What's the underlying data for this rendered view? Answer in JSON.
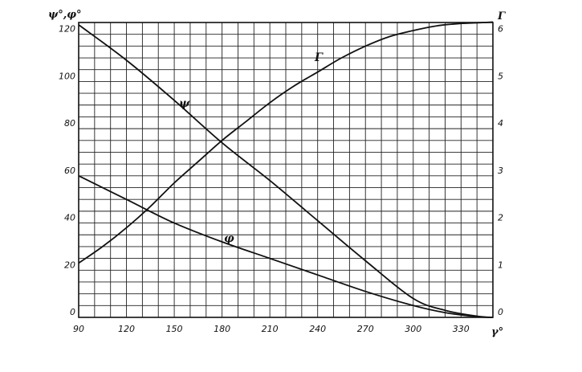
{
  "chart_data": {
    "type": "line",
    "x_axis": {
      "label": "γ°",
      "range": [
        90,
        350
      ],
      "ticks": [
        "90",
        "120",
        "150",
        "180",
        "210",
        "240",
        "270",
        "300",
        "330"
      ],
      "tick_values": [
        90,
        120,
        150,
        180,
        210,
        240,
        270,
        300,
        330
      ]
    },
    "y_left_axis": {
      "label": "ψ°,φ°",
      "range": [
        0,
        125
      ],
      "ticks": [
        "0",
        "20",
        "40",
        "60",
        "80",
        "100",
        "120"
      ],
      "tick_values": [
        0,
        20,
        40,
        60,
        80,
        100,
        120
      ]
    },
    "y_right_axis": {
      "label": "Γ",
      "range": [
        0,
        6.25
      ],
      "ticks": [
        "0",
        "1",
        "2",
        "3",
        "4",
        "5",
        "6"
      ],
      "tick_values": [
        0,
        1,
        2,
        3,
        4,
        5,
        6
      ]
    },
    "grid": true,
    "series": [
      {
        "name": "Γ",
        "axis": "right",
        "x": [
          90,
          105,
          120,
          135,
          150,
          165,
          180,
          195,
          210,
          225,
          240,
          255,
          270,
          285,
          300,
          315,
          330,
          345,
          350
        ],
        "y": [
          1.15,
          1.5,
          1.9,
          2.35,
          2.85,
          3.3,
          3.75,
          4.15,
          4.55,
          4.9,
          5.2,
          5.5,
          5.75,
          5.95,
          6.08,
          6.18,
          6.23,
          6.25,
          6.26
        ]
      },
      {
        "name": "ψ",
        "axis": "left",
        "x": [
          90,
          120,
          150,
          180,
          210,
          240,
          270,
          300,
          320,
          340,
          350
        ],
        "y": [
          124,
          109,
          92,
          74,
          58,
          41,
          24,
          8,
          3,
          0.5,
          0
        ]
      },
      {
        "name": "φ",
        "axis": "left",
        "x": [
          90,
          120,
          150,
          180,
          210,
          240,
          270,
          300,
          320,
          340,
          350
        ],
        "y": [
          60,
          50,
          40,
          32,
          25,
          18,
          11,
          5,
          2,
          0.3,
          0
        ]
      }
    ]
  }
}
